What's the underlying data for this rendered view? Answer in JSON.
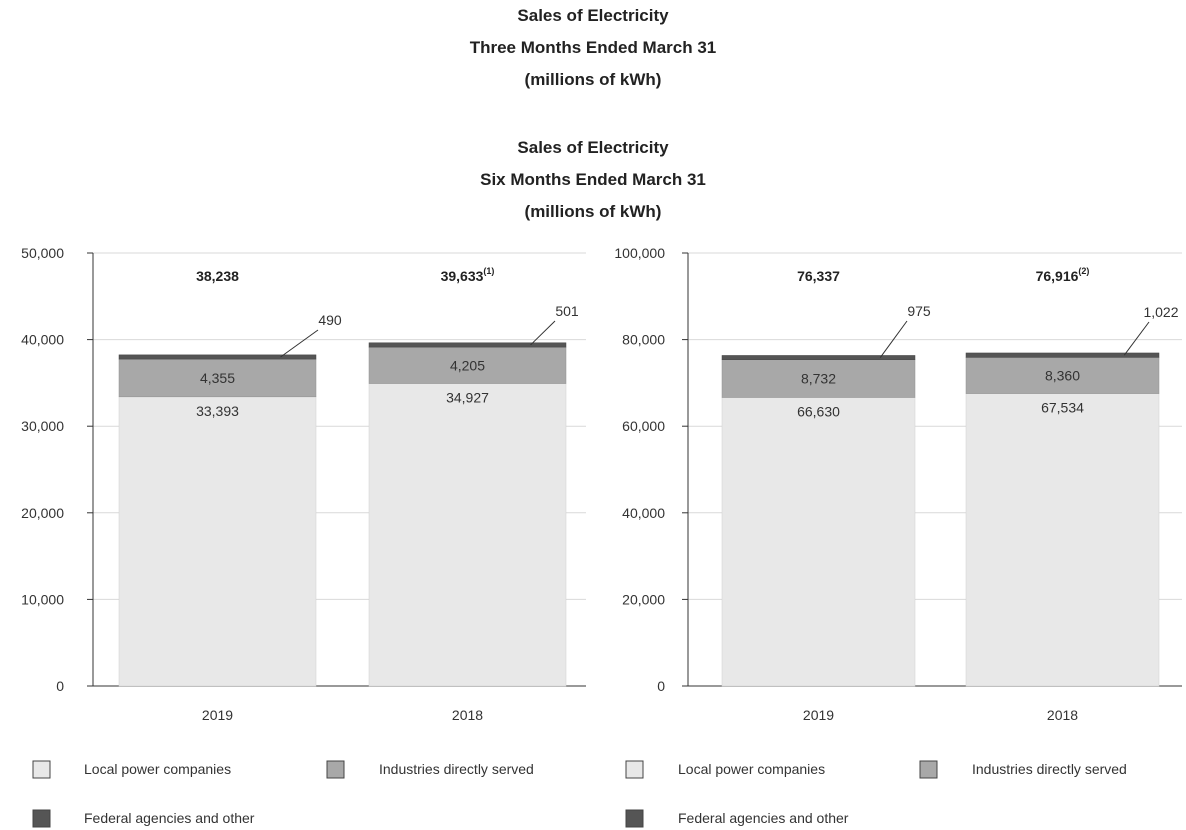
{
  "titles": {
    "chart1": [
      "Sales of Electricity",
      "Three Months Ended March 31",
      "(millions of kWh)"
    ],
    "chart2": [
      "Sales of Electricity",
      "Six Months Ended March 31",
      "(millions of kWh)"
    ]
  },
  "colors": {
    "local": "#e8e8e8",
    "industries": "#a8a8a8",
    "federal": "#555555",
    "axis": "#333333",
    "grid": "#d9d9d9"
  },
  "chart_data": [
    {
      "type": "bar",
      "stacked": true,
      "title": "Sales of Electricity Three Months Ended March 31 (millions of kWh)",
      "categories": [
        "2019",
        "2018"
      ],
      "series": [
        {
          "name": "Local power companies",
          "values": [
            33393,
            34927
          ],
          "labels": [
            "33,393",
            "34,927"
          ]
        },
        {
          "name": "Industries directly served",
          "values": [
            4355,
            4205
          ],
          "labels": [
            "4,355",
            "4,205"
          ]
        },
        {
          "name": "Federal agencies and other",
          "values": [
            490,
            501
          ],
          "labels": [
            "490",
            "501"
          ]
        }
      ],
      "totals": [
        {
          "label": "38,238",
          "sup": ""
        },
        {
          "label": "39,633",
          "sup": "(1)"
        }
      ],
      "ylim": [
        0,
        50000
      ],
      "yticks": [
        0,
        10000,
        20000,
        30000,
        40000,
        50000
      ],
      "yticklabels": [
        "0",
        "10,000",
        "20,000",
        "30,000",
        "40,000",
        "50,000"
      ],
      "grid": true,
      "legend": "bottom"
    },
    {
      "type": "bar",
      "stacked": true,
      "title": "Sales of Electricity Six Months Ended March 31 (millions of kWh)",
      "categories": [
        "2019",
        "2018"
      ],
      "series": [
        {
          "name": "Local power companies",
          "values": [
            66630,
            67534
          ],
          "labels": [
            "66,630",
            "67,534"
          ]
        },
        {
          "name": "Industries directly served",
          "values": [
            8732,
            8360
          ],
          "labels": [
            "8,732",
            "8,360"
          ]
        },
        {
          "name": "Federal agencies and other",
          "values": [
            975,
            1022
          ],
          "labels": [
            "975",
            "1,022"
          ]
        }
      ],
      "totals": [
        {
          "label": "76,337",
          "sup": ""
        },
        {
          "label": "76,916",
          "sup": "(2)"
        }
      ],
      "ylim": [
        0,
        100000
      ],
      "yticks": [
        0,
        20000,
        40000,
        60000,
        80000,
        100000
      ],
      "yticklabels": [
        "0",
        "20,000",
        "40,000",
        "60,000",
        "80,000",
        "100,000"
      ],
      "grid": true,
      "legend": "bottom"
    }
  ]
}
